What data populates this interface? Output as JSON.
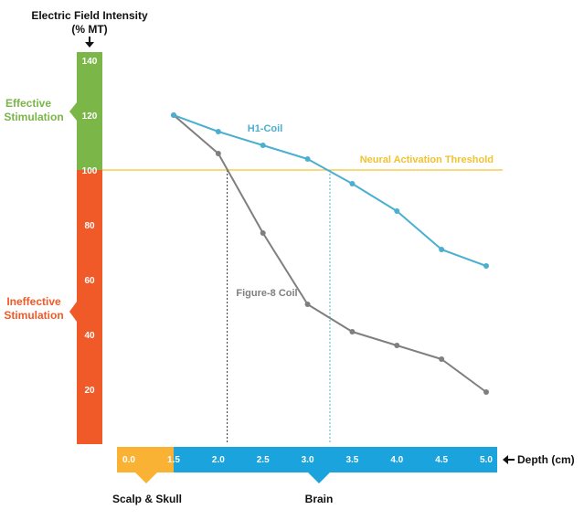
{
  "chart_data": {
    "type": "line",
    "y_axis": {
      "title_line1": "Electric Field Intensity",
      "title_line2": "(% MT)",
      "ticks": [
        20,
        40,
        60,
        80,
        100,
        120,
        140
      ],
      "ylim": [
        0,
        145
      ]
    },
    "x_axis": {
      "title": "Depth (cm)",
      "ticks": [
        "0.0",
        "1.5",
        "2.0",
        "2.5",
        "3.0",
        "3.5",
        "4.0",
        "4.5",
        "5.0"
      ],
      "xlim": [
        0.0,
        5.0
      ]
    },
    "zones_y": [
      {
        "label_line1": "Effective",
        "label_line2": "Stimulation",
        "from": 100,
        "to": 145,
        "color": "#7ab648"
      },
      {
        "label_line1": "Ineffective",
        "label_line2": "Stimulation",
        "from": 0,
        "to": 100,
        "color": "#f05a28"
      }
    ],
    "zones_x": [
      {
        "label": "Scalp & Skull",
        "from": 0.0,
        "to": 1.5,
        "color": "#f9b233"
      },
      {
        "label": "Brain",
        "from": 1.5,
        "to": 5.0,
        "color": "#1aa3dc"
      }
    ],
    "threshold": {
      "label": "Neural Activation Threshold",
      "value": 100,
      "color": "#f2c231"
    },
    "series": [
      {
        "name": "H1-Coil",
        "color": "#4bafd0",
        "x": [
          1.5,
          2.0,
          2.5,
          3.0,
          3.5,
          4.0,
          4.5,
          5.0
        ],
        "y": [
          120,
          114,
          109,
          104,
          95,
          85,
          71,
          65
        ],
        "threshold_crossing_x": 3.25
      },
      {
        "name": "Figure-8 Coil",
        "color": "#7f7f7f",
        "x": [
          1.5,
          2.0,
          2.5,
          3.0,
          3.5,
          4.0,
          4.5,
          5.0
        ],
        "y": [
          120,
          106,
          77,
          51,
          41,
          36,
          31,
          19
        ],
        "threshold_crossing_x": 2.1
      }
    ]
  }
}
